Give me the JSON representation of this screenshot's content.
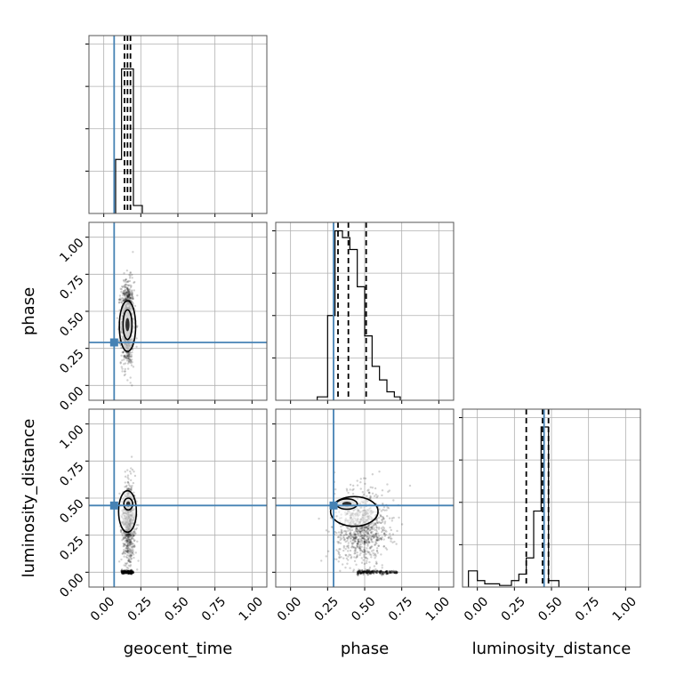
{
  "chart_data": {
    "type": "corner",
    "parameters": [
      "geocent_time",
      "phase",
      "luminosity_distance"
    ],
    "axis_range": [
      -0.1,
      1.1
    ],
    "tick_values": [
      0.0,
      0.25,
      0.5,
      0.75,
      1.0
    ],
    "tick_labels": [
      "0.00",
      "0.25",
      "0.50",
      "0.75",
      "1.00"
    ],
    "grid": true,
    "truth_color": "#4682b4",
    "truths": {
      "geocent_time": 0.07,
      "phase": 0.29,
      "luminosity_distance": 0.45
    },
    "histograms": [
      {
        "param": "geocent_time",
        "ymax": 1.12,
        "quantiles": [
          0.14,
          0.16,
          0.18
        ],
        "bins": [
          {
            "x0": 0.08,
            "x1": 0.12,
            "h": 0.34
          },
          {
            "x0": 0.12,
            "x1": 0.15,
            "h": 0.91
          },
          {
            "x0": 0.15,
            "x1": 0.2,
            "h": 0.91
          },
          {
            "x0": 0.2,
            "x1": 0.26,
            "h": 0.05
          }
        ]
      },
      {
        "param": "phase",
        "ymax": 1.05,
        "quantiles": [
          0.32,
          0.39,
          0.51
        ],
        "bins": [
          {
            "x0": 0.18,
            "x1": 0.25,
            "h": 0.02
          },
          {
            "x0": 0.25,
            "x1": 0.3,
            "h": 0.5
          },
          {
            "x0": 0.3,
            "x1": 0.35,
            "h": 1.0
          },
          {
            "x0": 0.35,
            "x1": 0.4,
            "h": 0.96
          },
          {
            "x0": 0.4,
            "x1": 0.45,
            "h": 0.89
          },
          {
            "x0": 0.45,
            "x1": 0.5,
            "h": 0.67
          },
          {
            "x0": 0.5,
            "x1": 0.55,
            "h": 0.38
          },
          {
            "x0": 0.55,
            "x1": 0.6,
            "h": 0.2
          },
          {
            "x0": 0.6,
            "x1": 0.65,
            "h": 0.12
          },
          {
            "x0": 0.65,
            "x1": 0.7,
            "h": 0.05
          },
          {
            "x0": 0.7,
            "x1": 0.74,
            "h": 0.02
          }
        ]
      },
      {
        "param": "luminosity_distance",
        "ymax": 1.1,
        "quantiles": [
          0.33,
          0.44,
          0.48
        ],
        "bins": [
          {
            "x0": -0.06,
            "x1": 0.0,
            "h": 0.1
          },
          {
            "x0": 0.0,
            "x1": 0.05,
            "h": 0.04
          },
          {
            "x0": 0.05,
            "x1": 0.15,
            "h": 0.02
          },
          {
            "x0": 0.15,
            "x1": 0.23,
            "h": 0.01
          },
          {
            "x0": 0.23,
            "x1": 0.28,
            "h": 0.04
          },
          {
            "x0": 0.28,
            "x1": 0.33,
            "h": 0.08
          },
          {
            "x0": 0.33,
            "x1": 0.38,
            "h": 0.18
          },
          {
            "x0": 0.38,
            "x1": 0.43,
            "h": 0.47
          },
          {
            "x0": 0.43,
            "x1": 0.48,
            "h": 0.99
          },
          {
            "x0": 0.48,
            "x1": 0.55,
            "h": 0.04
          }
        ]
      }
    ],
    "scatter_panels": [
      {
        "x": "geocent_time",
        "y": "phase",
        "point_cloud": {
          "cx": 0.16,
          "cy": 0.42,
          "sx": 0.022,
          "sy": 0.14,
          "n": 1100
        },
        "contours": [
          {
            "cx": 0.16,
            "cy": 0.4,
            "rx": 0.055,
            "ry": 0.17
          },
          {
            "cx": 0.16,
            "cy": 0.41,
            "rx": 0.03,
            "ry": 0.1
          }
        ]
      },
      {
        "x": "geocent_time",
        "y": "luminosity_distance",
        "point_cloud": {
          "cx": 0.17,
          "cy": 0.33,
          "sx": 0.022,
          "sy": 0.14,
          "n": 700
        },
        "contours": [
          {
            "cx": 0.16,
            "cy": 0.41,
            "rx": 0.06,
            "ry": 0.14
          },
          {
            "cx": 0.165,
            "cy": 0.46,
            "rx": 0.03,
            "ry": 0.04
          }
        ]
      },
      {
        "x": "phase",
        "y": "luminosity_distance",
        "point_cloud": {
          "cx": 0.48,
          "cy": 0.3,
          "sx": 0.09,
          "sy": 0.13,
          "n": 900
        },
        "contours": [
          {
            "cx": 0.43,
            "cy": 0.41,
            "rx": 0.16,
            "ry": 0.1
          },
          {
            "cx": 0.38,
            "cy": 0.46,
            "rx": 0.07,
            "ry": 0.035
          }
        ]
      }
    ]
  }
}
